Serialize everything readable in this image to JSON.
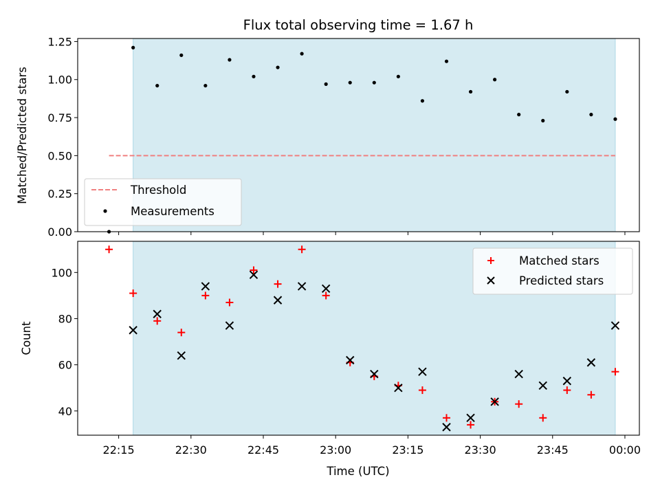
{
  "chart_data": {
    "title": "Flux total observing time = 1.67 h",
    "xlabel": "Time (UTC)",
    "x_ticks": [
      "22:15",
      "22:30",
      "22:45",
      "23:00",
      "23:15",
      "23:30",
      "23:45",
      "00:00"
    ],
    "shaded_span": {
      "start": "22:18",
      "end": "23:58",
      "color": "#add8e6"
    },
    "panels": [
      {
        "type": "scatter",
        "ylabel": "Matched/Predicted stars",
        "ylim": [
          0.0,
          1.27
        ],
        "y_ticks": [
          "0.00",
          "0.25",
          "0.50",
          "0.75",
          "1.00",
          "1.25"
        ],
        "legend_position": "lower-left",
        "threshold": {
          "name": "Threshold",
          "value": 0.5,
          "color": "#f08080",
          "x_start": "22:13",
          "x_end": "23:58"
        },
        "series": [
          {
            "name": "Measurements",
            "color": "#000000",
            "points": [
              [
                "22:13",
                0.0
              ],
              [
                "22:18",
                1.21
              ],
              [
                "22:23",
                0.96
              ],
              [
                "22:28",
                1.16
              ],
              [
                "22:33",
                0.96
              ],
              [
                "22:38",
                1.13
              ],
              [
                "22:43",
                1.02
              ],
              [
                "22:48",
                1.08
              ],
              [
                "22:53",
                1.17
              ],
              [
                "22:58",
                0.97
              ],
              [
                "23:03",
                0.98
              ],
              [
                "23:08",
                0.98
              ],
              [
                "23:13",
                1.02
              ],
              [
                "23:18",
                0.86
              ],
              [
                "23:23",
                1.12
              ],
              [
                "23:28",
                0.92
              ],
              [
                "23:33",
                1.0
              ],
              [
                "23:38",
                0.77
              ],
              [
                "23:43",
                0.73
              ],
              [
                "23:48",
                0.92
              ],
              [
                "23:53",
                0.77
              ],
              [
                "23:58",
                0.74
              ]
            ]
          }
        ]
      },
      {
        "type": "scatter",
        "ylabel": "Count",
        "ylim": [
          29.5,
          113.5
        ],
        "y_ticks": [
          "40",
          "60",
          "80",
          "100"
        ],
        "legend_position": "upper-right",
        "series": [
          {
            "name": "Matched stars",
            "marker": "+",
            "color": "#ff0000",
            "points": [
              [
                "22:13",
                110
              ],
              [
                "22:18",
                91
              ],
              [
                "22:23",
                79
              ],
              [
                "22:28",
                74
              ],
              [
                "22:33",
                90
              ],
              [
                "22:38",
                87
              ],
              [
                "22:43",
                101
              ],
              [
                "22:48",
                95
              ],
              [
                "22:53",
                110
              ],
              [
                "22:58",
                90
              ],
              [
                "23:03",
                61
              ],
              [
                "23:08",
                55
              ],
              [
                "23:13",
                51
              ],
              [
                "23:18",
                49
              ],
              [
                "23:23",
                37
              ],
              [
                "23:28",
                34
              ],
              [
                "23:33",
                44
              ],
              [
                "23:38",
                43
              ],
              [
                "23:43",
                37
              ],
              [
                "23:48",
                49
              ],
              [
                "23:53",
                47
              ],
              [
                "23:58",
                57
              ]
            ]
          },
          {
            "name": "Predicted stars",
            "marker": "x",
            "color": "#000000",
            "points": [
              [
                "22:18",
                75
              ],
              [
                "22:23",
                82
              ],
              [
                "22:28",
                64
              ],
              [
                "22:33",
                94
              ],
              [
                "22:38",
                77
              ],
              [
                "22:43",
                99
              ],
              [
                "22:48",
                88
              ],
              [
                "22:53",
                94
              ],
              [
                "22:58",
                93
              ],
              [
                "23:03",
                62
              ],
              [
                "23:08",
                56
              ],
              [
                "23:13",
                50
              ],
              [
                "23:18",
                57
              ],
              [
                "23:23",
                33
              ],
              [
                "23:28",
                37
              ],
              [
                "23:33",
                44
              ],
              [
                "23:38",
                56
              ],
              [
                "23:43",
                51
              ],
              [
                "23:48",
                53
              ],
              [
                "23:53",
                61
              ],
              [
                "23:58",
                77
              ]
            ]
          }
        ]
      }
    ]
  }
}
